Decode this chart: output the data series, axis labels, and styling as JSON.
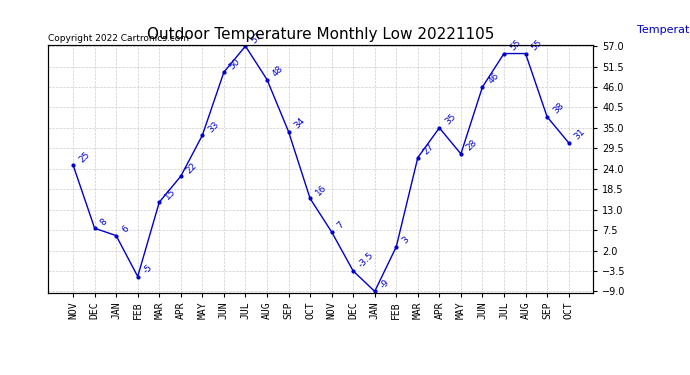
{
  "title": "Outdoor Temperature Monthly Low 20221105",
  "copyright_text": "Copyright 2022 Cartronics.com",
  "ylabel": "Temperature (°F)",
  "categories": [
    "NOV",
    "DEC",
    "JAN",
    "FEB",
    "MAR",
    "APR",
    "MAY",
    "JUN",
    "JUL",
    "AUG",
    "SEP",
    "OCT",
    "NOV",
    "DEC",
    "JAN",
    "FEB",
    "MAR",
    "APR",
    "MAY",
    "JUN",
    "JUL",
    "AUG",
    "SEP",
    "OCT"
  ],
  "values": [
    25,
    8,
    6,
    -5,
    15,
    22,
    33,
    50,
    57,
    48,
    34,
    16,
    7,
    -3.5,
    -9,
    3,
    27,
    35,
    28,
    46,
    55,
    55,
    38,
    31
  ],
  "point_labels": [
    "25",
    "8",
    "6",
    "-5",
    "15",
    "22",
    "33",
    "50",
    "57",
    "48",
    "34",
    "16",
    "7",
    "-3.5",
    "-9",
    "3",
    "27",
    "35",
    "28",
    "46",
    "55",
    "55",
    "38",
    "31"
  ],
  "line_color": "#0000cc",
  "marker_color": "#0000cc",
  "title_color": "#000000",
  "ylabel_color": "#0000cc",
  "copyright_color": "#000000",
  "label_color": "#0000cc",
  "ylim_min": -9.0,
  "ylim_max": 57.0,
  "yticks": [
    -9.0,
    -3.5,
    2.0,
    7.5,
    13.0,
    18.5,
    24.0,
    29.5,
    35.0,
    40.5,
    46.0,
    51.5,
    57.0
  ],
  "bg_color": "#ffffff",
  "grid_color": "#aaaaaa",
  "title_fontsize": 11,
  "label_fontsize": 6.5,
  "axis_fontsize": 7,
  "copyright_fontsize": 6.5,
  "ylabel_fontsize": 8
}
